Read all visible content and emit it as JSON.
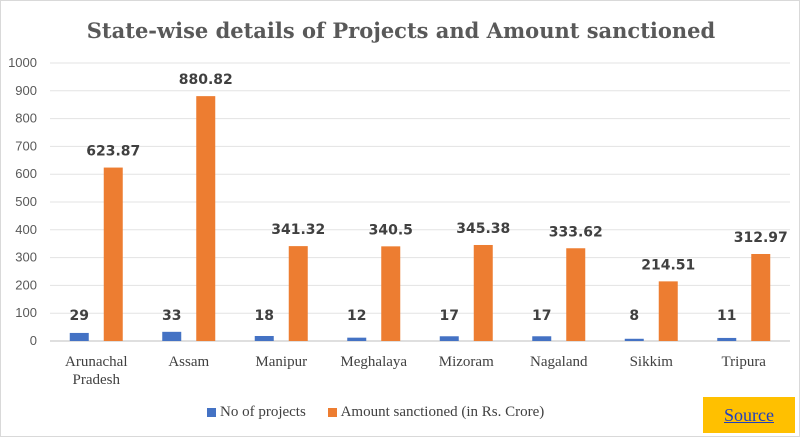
{
  "chart_data": {
    "type": "bar",
    "title": "State-wise details of Projects and Amount sanctioned",
    "categories": [
      [
        "Arunachal",
        "Pradesh"
      ],
      [
        "Assam"
      ],
      [
        "Manipur"
      ],
      [
        "Meghalaya"
      ],
      [
        "Mizoram"
      ],
      [
        "Nagaland"
      ],
      [
        "Sikkim"
      ],
      [
        "Tripura"
      ]
    ],
    "series": [
      {
        "name": "No of projects",
        "color": "#4472c4",
        "values": [
          29,
          33,
          18,
          12,
          17,
          17,
          8,
          11
        ],
        "labels": [
          "29",
          "33",
          "18",
          "12",
          "17",
          "17",
          "8",
          "11"
        ]
      },
      {
        "name": "Amount sanctioned (in Rs. Crore)",
        "color": "#ed7d31",
        "values": [
          623.87,
          880.82,
          341.32,
          340.5,
          345.38,
          333.62,
          214.51,
          312.97
        ],
        "labels": [
          "623.87",
          "880.82",
          "341.32",
          "340.5",
          "345.38",
          "333.62",
          "214.51",
          "312.97"
        ]
      }
    ],
    "ylim": [
      0,
      1000
    ],
    "yticks": [
      0,
      100,
      200,
      300,
      400,
      500,
      600,
      700,
      800,
      900,
      1000
    ],
    "xlabel": "",
    "ylabel": "",
    "legend": "bottom"
  },
  "source_link": {
    "label": "Source"
  }
}
